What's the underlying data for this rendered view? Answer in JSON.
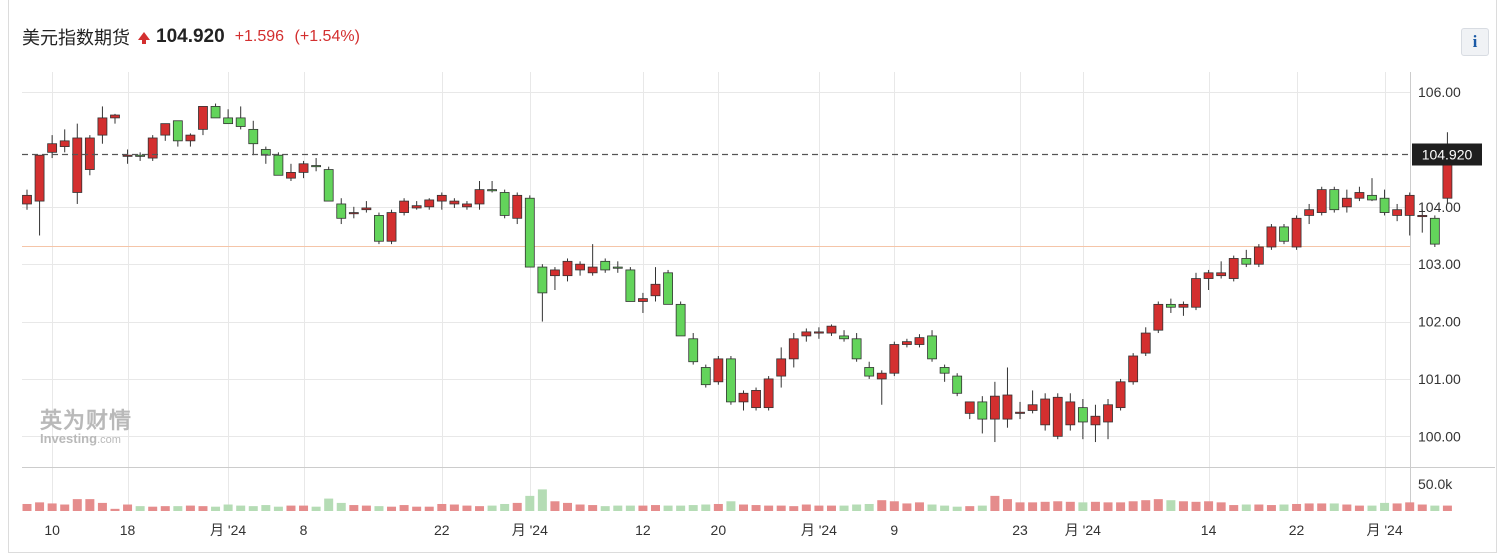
{
  "header": {
    "title": "美元指数期货",
    "price": "104.920",
    "change": "+1.596",
    "change_pct": "(+1.54%)"
  },
  "info_button": {
    "label": "i"
  },
  "watermark": {
    "cn": "英为财情",
    "en": "Investing",
    "en_suffix": ".com"
  },
  "colors": {
    "up": "#d32f2f",
    "down": "#63d45b",
    "vol_up": "#e58c8c",
    "vol_down": "#b5dcb5",
    "grid": "#e8e8e8"
  },
  "chart_data": {
    "type": "candlestick",
    "title": "美元指数期货",
    "last_price": 104.92,
    "last_price_label": "104.920",
    "reference_line": 103.32,
    "ylim": [
      99.5,
      106.35
    ],
    "y_ticks": [
      "100.00",
      "101.00",
      "102.00",
      "103.00",
      "104.00",
      "106.00"
    ],
    "y_tick_values": [
      100,
      101,
      102,
      103,
      104,
      106
    ],
    "volume_tick": "50.0k",
    "volume_max": 50000,
    "x_labels": [
      "10",
      "18",
      "月 '24",
      "8",
      "22",
      "月 '24",
      "12",
      "20",
      "月 '24",
      "9",
      "23",
      "月 '24",
      "14",
      "22",
      "月 '24"
    ],
    "x_label_index": [
      2,
      8,
      16,
      22,
      33,
      40,
      49,
      55,
      63,
      69,
      79,
      84,
      94,
      101,
      108
    ],
    "candles": [
      [
        104.05,
        104.3,
        103.95,
        104.2
      ],
      [
        104.1,
        104.9,
        103.5,
        104.9
      ],
      [
        104.95,
        105.25,
        104.85,
        105.1
      ],
      [
        105.05,
        105.35,
        104.95,
        105.15
      ],
      [
        104.25,
        105.45,
        104.05,
        105.2
      ],
      [
        104.65,
        105.25,
        104.55,
        105.2
      ],
      [
        105.25,
        105.75,
        105.1,
        105.55
      ],
      [
        105.55,
        105.62,
        105.45,
        105.6
      ],
      [
        104.9,
        105.0,
        104.75,
        104.9
      ],
      [
        104.9,
        104.95,
        104.8,
        104.88
      ],
      [
        104.85,
        105.25,
        104.8,
        105.2
      ],
      [
        105.25,
        105.45,
        105.15,
        105.45
      ],
      [
        105.5,
        105.5,
        105.05,
        105.15
      ],
      [
        105.15,
        105.28,
        105.05,
        105.25
      ],
      [
        105.35,
        105.75,
        105.25,
        105.75
      ],
      [
        105.75,
        105.8,
        105.55,
        105.55
      ],
      [
        105.55,
        105.7,
        105.45,
        105.45
      ],
      [
        105.55,
        105.75,
        105.35,
        105.4
      ],
      [
        105.35,
        105.5,
        104.9,
        105.1
      ],
      [
        105.0,
        105.05,
        104.75,
        104.9
      ],
      [
        104.9,
        104.95,
        104.55,
        104.55
      ],
      [
        104.5,
        104.75,
        104.45,
        104.6
      ],
      [
        104.6,
        104.8,
        104.5,
        104.75
      ],
      [
        104.72,
        104.85,
        104.62,
        104.7
      ],
      [
        104.65,
        104.7,
        104.1,
        104.1
      ],
      [
        104.05,
        104.15,
        103.7,
        103.8
      ],
      [
        103.9,
        104.0,
        103.8,
        103.9
      ],
      [
        103.95,
        104.1,
        103.9,
        103.98
      ],
      [
        103.85,
        103.9,
        103.35,
        103.4
      ],
      [
        103.4,
        103.95,
        103.35,
        103.9
      ],
      [
        103.9,
        104.15,
        103.85,
        104.1
      ],
      [
        103.98,
        104.1,
        103.95,
        104.02
      ],
      [
        104.0,
        104.15,
        103.95,
        104.12
      ],
      [
        104.1,
        104.25,
        103.95,
        104.2
      ],
      [
        104.05,
        104.15,
        103.98,
        104.1
      ],
      [
        104.0,
        104.1,
        103.95,
        104.05
      ],
      [
        104.05,
        104.45,
        103.95,
        104.3
      ],
      [
        104.3,
        104.45,
        104.25,
        104.28
      ],
      [
        104.25,
        104.3,
        103.8,
        103.85
      ],
      [
        103.8,
        104.25,
        103.7,
        104.2
      ],
      [
        104.15,
        104.2,
        102.95,
        102.95
      ],
      [
        102.95,
        103.0,
        102.0,
        102.5
      ],
      [
        102.8,
        102.95,
        102.55,
        102.9
      ],
      [
        102.8,
        103.1,
        102.7,
        103.05
      ],
      [
        102.9,
        103.05,
        102.8,
        103.0
      ],
      [
        102.85,
        103.35,
        102.8,
        102.95
      ],
      [
        103.05,
        103.1,
        102.85,
        102.9
      ],
      [
        102.95,
        103.05,
        102.85,
        102.93
      ],
      [
        102.9,
        102.95,
        102.35,
        102.35
      ],
      [
        102.35,
        102.5,
        102.15,
        102.4
      ],
      [
        102.45,
        102.95,
        102.35,
        102.65
      ],
      [
        102.85,
        102.9,
        102.3,
        102.3
      ],
      [
        102.3,
        102.35,
        101.75,
        101.75
      ],
      [
        101.7,
        101.8,
        101.25,
        101.3
      ],
      [
        101.2,
        101.25,
        100.85,
        100.9
      ],
      [
        100.95,
        101.4,
        100.9,
        101.35
      ],
      [
        101.35,
        101.4,
        100.55,
        100.6
      ],
      [
        100.6,
        100.8,
        100.45,
        100.75
      ],
      [
        100.5,
        100.85,
        100.45,
        100.8
      ],
      [
        100.5,
        101.05,
        100.45,
        101.0
      ],
      [
        101.05,
        101.55,
        100.85,
        101.35
      ],
      [
        101.35,
        101.8,
        101.2,
        101.7
      ],
      [
        101.75,
        101.88,
        101.65,
        101.82
      ],
      [
        101.8,
        101.9,
        101.7,
        101.82
      ],
      [
        101.8,
        101.95,
        101.75,
        101.92
      ],
      [
        101.75,
        101.85,
        101.65,
        101.7
      ],
      [
        101.7,
        101.8,
        101.3,
        101.35
      ],
      [
        101.2,
        101.3,
        101.0,
        101.05
      ],
      [
        101.0,
        101.15,
        100.55,
        101.1
      ],
      [
        101.1,
        101.65,
        101.05,
        101.6
      ],
      [
        101.6,
        101.7,
        101.55,
        101.65
      ],
      [
        101.6,
        101.78,
        101.55,
        101.72
      ],
      [
        101.75,
        101.85,
        101.3,
        101.35
      ],
      [
        101.2,
        101.25,
        100.95,
        101.1
      ],
      [
        101.05,
        101.1,
        100.7,
        100.75
      ],
      [
        100.4,
        100.6,
        100.3,
        100.6
      ],
      [
        100.6,
        100.7,
        100.05,
        100.3
      ],
      [
        100.3,
        100.95,
        99.9,
        100.7
      ],
      [
        100.3,
        101.2,
        100.15,
        100.72
      ],
      [
        100.4,
        100.6,
        100.3,
        100.42
      ],
      [
        100.45,
        100.8,
        100.4,
        100.55
      ],
      [
        100.2,
        100.75,
        100.1,
        100.65
      ],
      [
        100.0,
        100.75,
        99.95,
        100.68
      ],
      [
        100.2,
        100.75,
        100.1,
        100.6
      ],
      [
        100.5,
        100.65,
        99.95,
        100.25
      ],
      [
        100.2,
        100.55,
        99.9,
        100.35
      ],
      [
        100.25,
        100.65,
        99.95,
        100.55
      ],
      [
        100.5,
        101.0,
        100.45,
        100.95
      ],
      [
        100.95,
        101.45,
        100.9,
        101.4
      ],
      [
        101.45,
        101.9,
        101.4,
        101.8
      ],
      [
        101.85,
        102.35,
        101.8,
        102.3
      ],
      [
        102.3,
        102.4,
        102.15,
        102.25
      ],
      [
        102.25,
        102.35,
        102.1,
        102.3
      ],
      [
        102.25,
        102.85,
        102.2,
        102.75
      ],
      [
        102.75,
        102.9,
        102.55,
        102.85
      ],
      [
        102.8,
        103.05,
        102.75,
        102.85
      ],
      [
        102.75,
        103.15,
        102.7,
        103.1
      ],
      [
        103.1,
        103.25,
        102.95,
        103.0
      ],
      [
        103.0,
        103.35,
        102.95,
        103.3
      ],
      [
        103.3,
        103.7,
        103.25,
        103.65
      ],
      [
        103.65,
        103.7,
        103.35,
        103.4
      ],
      [
        103.3,
        103.85,
        103.25,
        103.8
      ],
      [
        103.85,
        104.05,
        103.7,
        103.95
      ],
      [
        103.9,
        104.35,
        103.85,
        104.3
      ],
      [
        104.3,
        104.35,
        103.9,
        103.95
      ],
      [
        104.0,
        104.3,
        103.9,
        104.15
      ],
      [
        104.15,
        104.35,
        104.1,
        104.25
      ],
      [
        104.2,
        104.5,
        104.1,
        104.12
      ],
      [
        104.15,
        104.3,
        103.85,
        103.9
      ],
      [
        103.85,
        104.05,
        103.75,
        103.95
      ],
      [
        103.85,
        104.25,
        103.5,
        104.2
      ],
      [
        103.85,
        103.95,
        103.55,
        103.85
      ],
      [
        103.8,
        103.85,
        103.3,
        103.35
      ],
      [
        104.15,
        105.3,
        104.05,
        104.92
      ]
    ],
    "volumes": [
      13000,
      16000,
      14000,
      12000,
      22000,
      22000,
      15000,
      4000,
      12000,
      9000,
      8000,
      9000,
      9000,
      10000,
      9000,
      8000,
      12000,
      10000,
      9000,
      11000,
      8000,
      10000,
      10000,
      8000,
      23000,
      15000,
      11000,
      10000,
      9000,
      8000,
      11000,
      8000,
      8000,
      13000,
      12000,
      10000,
      9000,
      10000,
      13000,
      15000,
      28000,
      40000,
      18000,
      15000,
      12000,
      11000,
      9000,
      10000,
      10000,
      10000,
      11000,
      10000,
      10000,
      11000,
      12000,
      13000,
      18000,
      12000,
      11000,
      10000,
      10000,
      9000,
      12000,
      10000,
      10000,
      10000,
      12000,
      13000,
      20000,
      18000,
      14000,
      16000,
      12000,
      10000,
      8000,
      9000,
      10000,
      28000,
      22000,
      16000,
      16000,
      17000,
      18000,
      17000,
      16000,
      17000,
      16000,
      16000,
      18000,
      20000,
      22000,
      20000,
      18000,
      17000,
      18000,
      16000,
      11000,
      12000,
      12000,
      11000,
      12000,
      13000,
      14000,
      14000,
      14000,
      12000,
      10000,
      10000,
      15000,
      14000,
      16000,
      12000,
      10000,
      10000
    ]
  }
}
